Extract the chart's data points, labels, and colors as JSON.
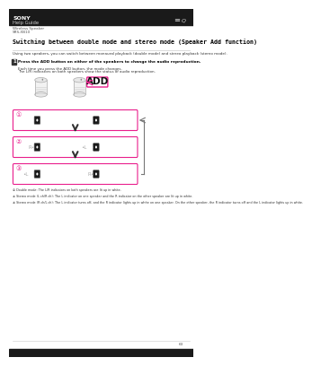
{
  "bg_color": "#ffffff",
  "header_bg": "#1a1a1a",
  "header_sony_text": "SONY",
  "header_guide_text": "Help Guide",
  "breadcrumb1": "Wireless Speaker",
  "breadcrumb2": "SRS-XB10",
  "main_title": "Switching between double mode and stereo mode (Speaker Add function)",
  "subtitle": "Using two speakers, you can switch between monaural playback (double mode) and stereo playback (stereo mode).",
  "step_num": "1",
  "step_text": "Press the ADD button on either of the speakers to change the audio reproduction.",
  "step_sub1": "Each time you press the ADD button, the mode changes.",
  "step_sub2": "The L/R indicators on both speakers show the status of audio reproduction.",
  "add_label": "ADD",
  "mode1_label": "①",
  "mode2_label": "②",
  "mode3_label": "③",
  "footnote1": "① Double mode: The L/R indicators on both speakers are lit up in white.",
  "footnote2": "② Stereo mode (L ch/R ch): The L indicator on one speaker and the R indicator on the other speaker are lit up in white.",
  "footnote3": "③ Stereo mode (R ch/L ch): The L indicator turns off, and the R indicator lights up in white on one speaker. On the other speaker, the R indicator turns off and the L indicator lights up in white.",
  "pink_border": "#e91e8c",
  "arrow_color": "#555555",
  "page_num": "63"
}
